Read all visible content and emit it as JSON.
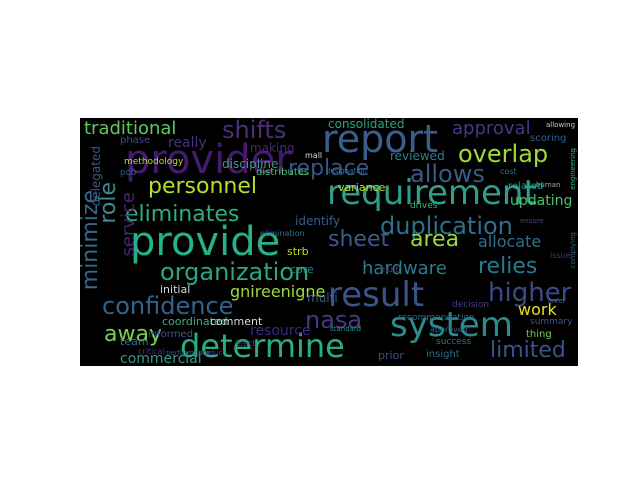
{
  "wordcloud": {
    "background": "#000000",
    "words": [
      {
        "text": "provider",
        "color": "#46186f"
      },
      {
        "text": "report",
        "color": "#3a5e8c"
      },
      {
        "text": "requirement",
        "color": "#2f9e8b"
      },
      {
        "text": "provide",
        "color": "#27b18a"
      },
      {
        "text": "result",
        "color": "#3a548c"
      },
      {
        "text": "system",
        "color": "#2d8b8e"
      },
      {
        "text": "determine",
        "color": "#28ae80"
      },
      {
        "text": "organization",
        "color": "#2aa686"
      },
      {
        "text": "eliminates",
        "color": "#2ab07f"
      },
      {
        "text": "confidence",
        "color": "#32638d"
      },
      {
        "text": "personnel",
        "color": "#b5de2b"
      },
      {
        "text": "replace",
        "color": "#3b538b"
      },
      {
        "text": "allows",
        "color": "#3a5a8c"
      },
      {
        "text": "duplication",
        "color": "#2d6f8e"
      },
      {
        "text": "overlap",
        "color": "#a0da39"
      },
      {
        "text": "sheet",
        "color": "#3b5a8c"
      },
      {
        "text": "area",
        "color": "#9cd93b"
      },
      {
        "text": "relies",
        "color": "#2a7a8e"
      },
      {
        "text": "higher",
        "color": "#3d4a89"
      },
      {
        "text": "limited",
        "color": "#3b518b"
      },
      {
        "text": "nasa",
        "color": "#443a83"
      },
      {
        "text": "shifts",
        "color": "#4a2f7c"
      },
      {
        "text": "traditional",
        "color": "#5ec962"
      },
      {
        "text": "approval",
        "color": "#48387e"
      },
      {
        "text": "hardware",
        "color": "#2c7b8e"
      },
      {
        "text": "minimize",
        "color": "#2f6c8e"
      },
      {
        "text": "service",
        "color": "#482475"
      },
      {
        "text": "role",
        "color": "#3d8b8e"
      },
      {
        "text": "away",
        "color": "#7ad151"
      },
      {
        "text": "work",
        "color": "#e5e419"
      },
      {
        "text": "commercial",
        "color": "#2e9b8a"
      },
      {
        "text": "gnireenigne",
        "color": "#a0da39"
      },
      {
        "text": "allocate",
        "color": "#2c718e"
      },
      {
        "text": "consolidated",
        "color": "#2ea187"
      },
      {
        "text": "updating",
        "color": "#4ac16d"
      },
      {
        "text": "reviewed",
        "color": "#2c7f8e"
      },
      {
        "text": "really",
        "color": "#46317e"
      },
      {
        "text": "making",
        "color": "#482777"
      },
      {
        "text": "delegated",
        "color": "#38588c"
      },
      {
        "text": "discipline",
        "color": "#3d9d85"
      },
      {
        "text": "identify",
        "color": "#355f8d"
      },
      {
        "text": "variance",
        "color": "#c2df23"
      },
      {
        "text": "coordinated",
        "color": "#39b67a"
      },
      {
        "text": "initial",
        "color": "#d7d7d7"
      },
      {
        "text": "resource",
        "color": "#3b2883"
      },
      {
        "text": "team",
        "color": "#2f728e"
      },
      {
        "text": "comment",
        "color": "#d9d9d9"
      },
      {
        "text": "informed",
        "color": "#3a558c"
      },
      {
        "text": "prior",
        "color": "#3c4a8a"
      },
      {
        "text": "multi",
        "color": "#37618d"
      },
      {
        "text": "core",
        "color": "#25858e"
      },
      {
        "text": "strb",
        "color": "#b5de2b"
      },
      {
        "text": "distributes",
        "color": "#4ac16d"
      },
      {
        "text": "recommendation",
        "color": "#2c6b8e"
      },
      {
        "text": "decision",
        "color": "#413d84"
      },
      {
        "text": "scoring",
        "color": "#355e8d"
      },
      {
        "text": "thing",
        "color": "#7ad151"
      },
      {
        "text": "summary",
        "color": "#3b528b"
      },
      {
        "text": "insight",
        "color": "#306a8e"
      },
      {
        "text": "success",
        "color": "#2b758e"
      },
      {
        "text": "drives",
        "color": "#38b977"
      },
      {
        "text": "approved",
        "color": "#31688e"
      },
      {
        "text": "related",
        "color": "#1fa187"
      },
      {
        "text": "phase",
        "color": "#3e4c8a"
      },
      {
        "text": "methodology",
        "color": "#b5de2b"
      },
      {
        "text": "pcb",
        "color": "#365c8d"
      },
      {
        "text": "critical",
        "color": "#46327e"
      },
      {
        "text": "elimination",
        "color": "#2e6f8e"
      },
      {
        "text": "complying",
        "color": "#31668e"
      },
      {
        "text": "designation",
        "color": "#2a788e"
      },
      {
        "text": "allowing",
        "color": "#cccccc"
      },
      {
        "text": "product",
        "color": "#433e85"
      },
      {
        "text": "performance",
        "color": "#3a548c"
      },
      {
        "text": "engineering",
        "color": "#35b779"
      },
      {
        "text": "issue",
        "color": "#46307e"
      },
      {
        "text": "human",
        "color": "#a5a5a5"
      },
      {
        "text": "ensure",
        "color": "#3f4788"
      },
      {
        "text": "standard",
        "color": "#1f9e89"
      },
      {
        "text": "level",
        "color": "#2c728e"
      },
      {
        "text": "multi",
        "color": "#414487"
      },
      {
        "text": "cost",
        "color": "#2a788e"
      },
      {
        "text": "mall",
        "color": "#dddddd"
      },
      {
        "text": "elect",
        "color": "#433d84"
      }
    ]
  }
}
